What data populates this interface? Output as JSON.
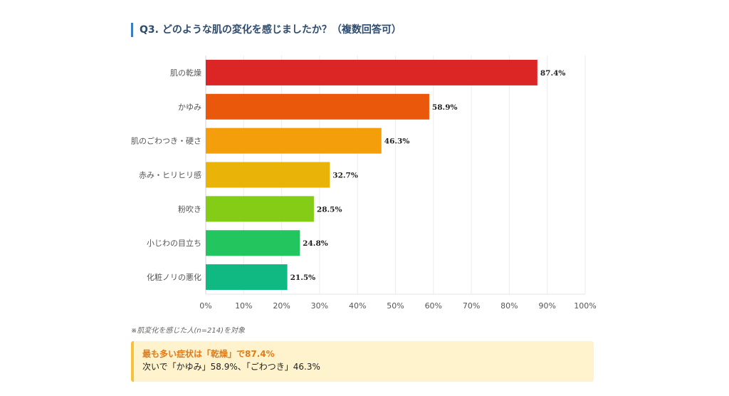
{
  "header": {
    "title": "Q3. どのような肌の変化を感じましたか？（複数回答可）"
  },
  "chart_data": {
    "type": "bar",
    "orientation": "horizontal",
    "title": "Q3. どのような肌の変化を感じましたか？（複数回答可）",
    "categories": [
      "肌の乾燥",
      "かゆみ",
      "肌のごわつき・硬さ",
      "赤み・ヒリヒリ感",
      "粉吹き",
      "小じわの目立ち",
      "化粧ノリの悪化"
    ],
    "values": [
      87.4,
      58.9,
      46.3,
      32.7,
      28.5,
      24.8,
      21.5
    ],
    "value_labels": [
      "87.4%",
      "58.9%",
      "46.3%",
      "32.7%",
      "28.5%",
      "24.8%",
      "21.5%"
    ],
    "colors": [
      "#dc2626",
      "#ea580c",
      "#f59e0b",
      "#eab308",
      "#84cc16",
      "#22c55e",
      "#10b981"
    ],
    "xlim": [
      0,
      100
    ],
    "xticks": [
      "0%",
      "10%",
      "20%",
      "30%",
      "40%",
      "50%",
      "60%",
      "70%",
      "80%",
      "90%",
      "100%"
    ],
    "xlabel": "",
    "ylabel": "",
    "grid": true,
    "legend": "none"
  },
  "footnote": "※肌変化を感じた人(n=214)を対象",
  "callout": {
    "headline": "最も多い症状は「乾燥」で87.4%",
    "body": "次いで「かゆみ」58.9%、「ごわつき」46.3%"
  },
  "colors": {
    "accent": "#3b7dc4",
    "callout_bg": "#fef3cc",
    "callout_border": "#f5c33b",
    "callout_head": "#e07b1a"
  }
}
